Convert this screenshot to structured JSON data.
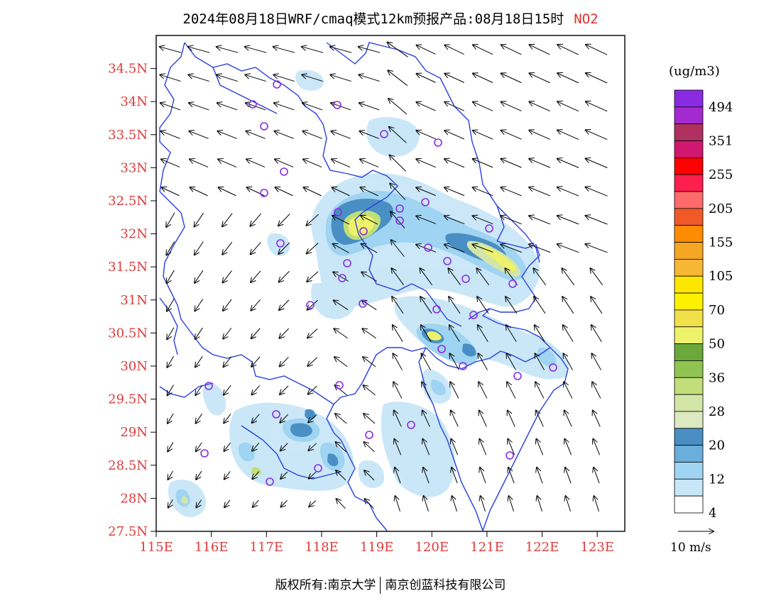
{
  "title": {
    "main": "2024年08月18日WRF/cmaq模式12km预报产品:08月18日15时",
    "species": "NO2"
  },
  "axes": {
    "lat_labels": [
      "34.5N",
      "34N",
      "33.5N",
      "33N",
      "32.5N",
      "32N",
      "31.5N",
      "31N",
      "30.5N",
      "30N",
      "29.5N",
      "29N",
      "28.5N",
      "28N",
      "27.5N"
    ],
    "lat_values": [
      34.5,
      34,
      33.5,
      33,
      32.5,
      32,
      31.5,
      31,
      30.5,
      30,
      29.5,
      29,
      28.5,
      28,
      27.5
    ],
    "lon_labels": [
      "115E",
      "116E",
      "117E",
      "118E",
      "119E",
      "120E",
      "121E",
      "122E",
      "123E"
    ],
    "lon_values": [
      115,
      116,
      117,
      118,
      119,
      120,
      121,
      122,
      123
    ],
    "lat_range": [
      27.5,
      35.0
    ],
    "lon_range": [
      115.0,
      123.5
    ]
  },
  "colorbar": {
    "unit": "(ug/m3)",
    "labels": [
      "494",
      "351",
      "255",
      "205",
      "155",
      "105",
      "70",
      "50",
      "36",
      "28",
      "20",
      "12",
      "4"
    ],
    "colors": [
      "#8a2be2",
      "#a32ad1",
      "#b03060",
      "#d01870",
      "#ff0000",
      "#ff1f4e",
      "#ff6a6a",
      "#f05a28",
      "#ff8c00",
      "#f5a623",
      "#f7b733",
      "#ffe600",
      "#fff000",
      "#f2e04a",
      "#eef26a",
      "#6aa83a",
      "#90c452",
      "#c0de7a",
      "#d3e6a8",
      "#dde9c0",
      "#4a8fc4",
      "#6aaedc",
      "#9fd4f2",
      "#c8e6f8",
      "#ffffff"
    ]
  },
  "wind_reference": {
    "label": "10 m/s",
    "speed": 10
  },
  "footer": {
    "left": "版权所有:南京大学",
    "right": "南京创蓝科技有限公司"
  },
  "colors": {
    "boundary": "#2a3fe0",
    "axis_label": "#e03a3a",
    "site_marker": "#8a2be2"
  }
}
